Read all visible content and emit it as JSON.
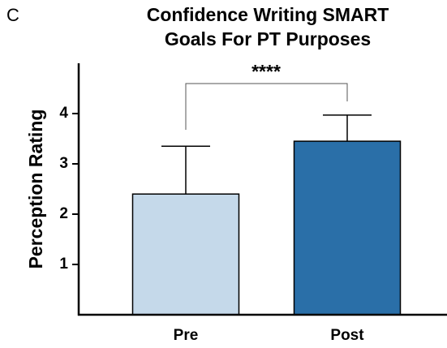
{
  "chart_data": {
    "type": "bar",
    "panel_label": "C",
    "title": [
      "Confidence Writing SMART",
      "Goals For PT Purposes"
    ],
    "ylabel": "Perception Rating",
    "categories": [
      "Pre",
      "Post"
    ],
    "values": [
      2.4,
      3.45
    ],
    "errors": [
      0.95,
      0.52
    ],
    "colors": [
      "#c5d9ea",
      "#2a6fa8"
    ],
    "ylim": [
      0,
      5
    ],
    "yticks": [
      1,
      2,
      3,
      4
    ],
    "annotation": "****"
  }
}
